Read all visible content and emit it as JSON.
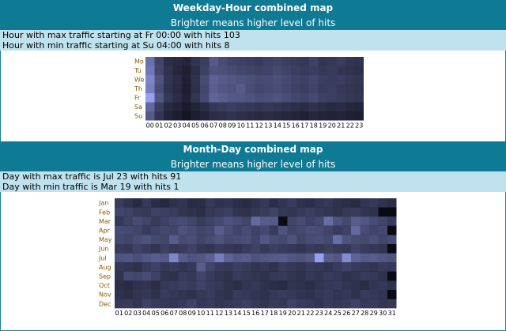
{
  "weekday_hour": {
    "title": "Weekday-Hour combined map",
    "subtitle": "Brighter means higher level of hits",
    "max_line": "Hour with max traffic starting at Fr 00:00 with hits 103",
    "min_line": "Hour with min traffic starting at Su 04:00 with hits 8",
    "row_labels": [
      "Mo",
      "Tu",
      "We",
      "Th",
      "Fr",
      "Sa",
      "Su"
    ],
    "col_labels": [
      "00",
      "01",
      "02",
      "03",
      "04",
      "05",
      "06",
      "07",
      "08",
      "09",
      "10",
      "11",
      "12",
      "13",
      "14",
      "15",
      "16",
      "17",
      "18",
      "19",
      "20",
      "21",
      "22",
      "23"
    ]
  },
  "month_day": {
    "title": "Month-Day combined map",
    "subtitle": "Brighter means higher level of hits",
    "max_line": "Day with max traffic is Jul 23 with hits 91",
    "min_line": "Day with min traffic is Mar 19 with hits 1",
    "row_labels": [
      "Jan",
      "Feb",
      "Mar",
      "Apr",
      "May",
      "Jun",
      "Jul",
      "Aug",
      "Sep",
      "Oct",
      "Nov",
      "Dec"
    ],
    "col_labels": [
      "01",
      "02",
      "03",
      "04",
      "05",
      "06",
      "07",
      "08",
      "09",
      "10",
      "11",
      "12",
      "13",
      "14",
      "15",
      "16",
      "17",
      "18",
      "19",
      "20",
      "21",
      "22",
      "23",
      "24",
      "25",
      "26",
      "27",
      "28",
      "29",
      "30",
      "31"
    ]
  },
  "chart_data": [
    {
      "type": "heatmap",
      "title": "Weekday-Hour combined map",
      "rows": [
        "Mo",
        "Tu",
        "We",
        "Th",
        "Fr",
        "Sa",
        "Su"
      ],
      "columns": [
        "00",
        "01",
        "02",
        "03",
        "04",
        "05",
        "06",
        "07",
        "08",
        "09",
        "10",
        "11",
        "12",
        "13",
        "14",
        "15",
        "16",
        "17",
        "18",
        "19",
        "20",
        "21",
        "22",
        "23"
      ],
      "values": [
        [
          70,
          40,
          25,
          22,
          18,
          30,
          35,
          55,
          45,
          40,
          38,
          36,
          34,
          38,
          40,
          36,
          34,
          32,
          38,
          30,
          32,
          35,
          30,
          28
        ],
        [
          75,
          42,
          28,
          20,
          15,
          25,
          38,
          50,
          48,
          45,
          42,
          40,
          38,
          40,
          44,
          40,
          36,
          34,
          36,
          32,
          34,
          30,
          28,
          26
        ],
        [
          85,
          50,
          30,
          24,
          16,
          28,
          45,
          60,
          55,
          52,
          50,
          48,
          44,
          46,
          48,
          44,
          40,
          38,
          42,
          36,
          34,
          36,
          32,
          30
        ],
        [
          80,
          46,
          28,
          22,
          14,
          26,
          42,
          58,
          52,
          50,
          55,
          46,
          42,
          44,
          46,
          42,
          38,
          36,
          40,
          34,
          36,
          32,
          30,
          28
        ],
        [
          103,
          52,
          32,
          24,
          16,
          30,
          44,
          62,
          58,
          54,
          52,
          50,
          46,
          48,
          50,
          46,
          42,
          40,
          44,
          38,
          36,
          34,
          32,
          30
        ],
        [
          65,
          36,
          22,
          18,
          12,
          18,
          24,
          32,
          34,
          36,
          34,
          32,
          30,
          32,
          30,
          28,
          26,
          24,
          28,
          24,
          22,
          24,
          20,
          18
        ],
        [
          55,
          30,
          18,
          14,
          8,
          14,
          18,
          24,
          26,
          28,
          26,
          24,
          22,
          24,
          22,
          20,
          18,
          16,
          20,
          18,
          16,
          18,
          16,
          14
        ]
      ]
    },
    {
      "type": "heatmap",
      "title": "Month-Day combined map",
      "rows": [
        "Jan",
        "Feb",
        "Mar",
        "Apr",
        "May",
        "Jun",
        "Jul",
        "Aug",
        "Sep",
        "Oct",
        "Nov",
        "Dec"
      ],
      "columns": [
        "01",
        "02",
        "03",
        "04",
        "05",
        "06",
        "07",
        "08",
        "09",
        "10",
        "11",
        "12",
        "13",
        "14",
        "15",
        "16",
        "17",
        "18",
        "19",
        "20",
        "21",
        "22",
        "23",
        "24",
        "25",
        "26",
        "27",
        "28",
        "29",
        "30",
        "31"
      ],
      "values": [
        [
          30,
          25,
          20,
          28,
          22,
          18,
          24,
          26,
          20,
          22,
          28,
          24,
          26,
          22,
          20,
          24,
          28,
          22,
          26,
          30,
          24,
          22,
          26,
          28,
          24,
          22,
          20,
          26,
          28,
          24,
          22
        ],
        [
          36,
          34,
          30,
          28,
          34,
          32,
          30,
          26,
          24,
          22,
          28,
          30,
          32,
          26,
          24,
          28,
          30,
          34,
          28,
          26,
          30,
          32,
          28,
          26,
          24,
          28,
          30,
          26,
          24,
          0,
          0
        ],
        [
          28,
          34,
          40,
          36,
          30,
          34,
          38,
          40,
          36,
          30,
          34,
          38,
          44,
          40,
          36,
          58,
          50,
          48,
          1,
          36,
          40,
          34,
          38,
          60,
          44,
          38,
          50,
          46,
          40,
          36,
          30
        ],
        [
          40,
          38,
          36,
          30,
          34,
          38,
          36,
          44,
          40,
          36,
          38,
          50,
          42,
          36,
          40,
          34,
          38,
          30,
          44,
          36,
          38,
          42,
          40,
          36,
          30,
          34,
          58,
          40,
          36,
          38,
          0
        ],
        [
          38,
          36,
          40,
          44,
          38,
          36,
          50,
          40,
          42,
          36,
          40,
          44,
          38,
          40,
          42,
          36,
          46,
          40,
          38,
          44,
          36,
          40,
          42,
          38,
          60,
          44,
          40,
          38,
          42,
          36,
          40
        ],
        [
          30,
          28,
          34,
          30,
          26,
          32,
          28,
          30,
          34,
          28,
          26,
          30,
          28,
          26,
          30,
          34,
          28,
          32,
          30,
          28,
          26,
          30,
          28,
          32,
          30,
          28,
          34,
          30,
          28,
          26,
          0
        ],
        [
          44,
          46,
          42,
          46,
          50,
          48,
          75,
          50,
          44,
          46,
          52,
          70,
          54,
          48,
          50,
          44,
          46,
          48,
          50,
          46,
          44,
          48,
          91,
          50,
          46,
          78,
          54,
          48,
          50,
          46,
          44
        ],
        [
          28,
          26,
          24,
          30,
          34,
          28,
          30,
          26,
          28,
          50,
          36,
          30,
          28,
          32,
          30,
          26,
          28,
          24,
          30,
          28,
          26,
          30,
          28,
          26,
          30,
          34,
          30,
          28,
          26,
          30,
          28
        ],
        [
          26,
          38,
          36,
          40,
          34,
          26,
          24,
          30,
          28,
          36,
          30,
          26,
          24,
          30,
          28,
          26,
          24,
          28,
          30,
          26,
          24,
          28,
          26,
          30,
          28,
          24,
          26,
          30,
          28,
          24,
          0
        ],
        [
          22,
          20,
          24,
          26,
          22,
          28,
          30,
          32,
          30,
          34,
          30,
          28,
          24,
          22,
          26,
          28,
          24,
          22,
          20,
          26,
          24,
          22,
          26,
          28,
          30,
          26,
          24,
          22,
          26,
          28,
          24
        ],
        [
          24,
          22,
          26,
          28,
          24,
          30,
          28,
          26,
          24,
          28,
          30,
          26,
          24,
          30,
          28,
          26,
          24,
          28,
          30,
          28,
          26,
          24,
          28,
          30,
          26,
          28,
          24,
          30,
          28,
          26,
          0
        ],
        [
          28,
          30,
          26,
          34,
          30,
          28,
          26,
          30,
          34,
          28,
          30,
          26,
          28,
          30,
          32,
          28,
          26,
          30,
          28,
          34,
          30,
          28,
          26,
          30,
          28,
          30,
          34,
          28,
          30,
          26,
          28
        ]
      ]
    }
  ]
}
